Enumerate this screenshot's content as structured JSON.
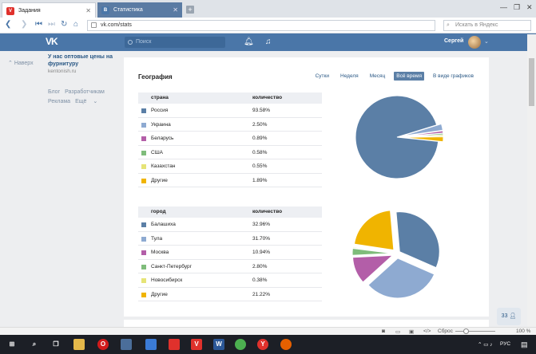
{
  "browser": {
    "tabs": [
      {
        "label": "Задания",
        "active": true,
        "favicon": "v"
      },
      {
        "label": "Статистика",
        "active": false,
        "favicon": "vk"
      }
    ],
    "url": "vk.com/stats",
    "search_placeholder": "Искать в Яндекс"
  },
  "vk": {
    "logo": "VK",
    "search_placeholder": "Поиск",
    "user_name": "Сергей"
  },
  "left": {
    "back_to_top": "Наверх",
    "promo_title": "У нас оптовые цены на фурнитуру",
    "promo_url": "kentonish.ru",
    "links": [
      "Блог",
      "Разработчикам",
      "Реклама",
      "Ещё"
    ]
  },
  "section": {
    "title": "География",
    "tabs": [
      "Сутки",
      "Неделя",
      "Месяц",
      "Всё время",
      "В виде графиков"
    ],
    "selected_tab": "Всё время"
  },
  "countries": {
    "col1": "страна",
    "col2": "количество",
    "rows": [
      {
        "name": "Россия",
        "value": "93.58%",
        "pct": 93.58,
        "color": "#5b7fa6"
      },
      {
        "name": "Украина",
        "value": "2.50%",
        "pct": 2.5,
        "color": "#8eaad1"
      },
      {
        "name": "Беларусь",
        "value": "0.89%",
        "pct": 0.89,
        "color": "#b35ea8"
      },
      {
        "name": "США",
        "value": "0.58%",
        "pct": 0.58,
        "color": "#7fbc7b"
      },
      {
        "name": "Казахстан",
        "value": "0.55%",
        "pct": 0.55,
        "color": "#e6e477"
      },
      {
        "name": "Другие",
        "value": "1.89%",
        "pct": 1.89,
        "color": "#f0b400"
      }
    ]
  },
  "cities": {
    "col1": "город",
    "col2": "количество",
    "rows": [
      {
        "name": "Балашиха",
        "value": "32.96%",
        "pct": 32.96,
        "color": "#5b7fa6"
      },
      {
        "name": "Тула",
        "value": "31.70%",
        "pct": 31.7,
        "color": "#8eaad1"
      },
      {
        "name": "Москва",
        "value": "10.94%",
        "pct": 10.94,
        "color": "#b35ea8"
      },
      {
        "name": "Санкт-Петербург",
        "value": "2.80%",
        "pct": 2.8,
        "color": "#7fbc7b"
      },
      {
        "name": "Новосибирск",
        "value": "0.38%",
        "pct": 0.38,
        "color": "#e6e477"
      },
      {
        "name": "Другие",
        "value": "21.22%",
        "pct": 21.22,
        "color": "#f0b400"
      }
    ]
  },
  "chat_count": "33",
  "statusbar": {
    "reset": "Сброс",
    "zoom": "100 %"
  },
  "taskbar": {
    "lang": "РУС"
  }
}
